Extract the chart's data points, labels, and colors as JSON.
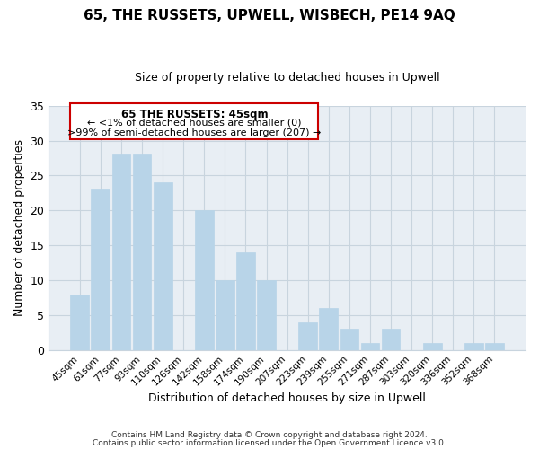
{
  "title": "65, THE RUSSETS, UPWELL, WISBECH, PE14 9AQ",
  "subtitle": "Size of property relative to detached houses in Upwell",
  "xlabel": "Distribution of detached houses by size in Upwell",
  "ylabel": "Number of detached properties",
  "bar_color": "#b8d4e8",
  "background_color": "#e8eef4",
  "grid_color": "#c8d4de",
  "categories": [
    "45sqm",
    "61sqm",
    "77sqm",
    "93sqm",
    "110sqm",
    "126sqm",
    "142sqm",
    "158sqm",
    "174sqm",
    "190sqm",
    "207sqm",
    "223sqm",
    "239sqm",
    "255sqm",
    "271sqm",
    "287sqm",
    "303sqm",
    "320sqm",
    "336sqm",
    "352sqm",
    "368sqm"
  ],
  "values": [
    8,
    23,
    28,
    28,
    24,
    0,
    20,
    10,
    14,
    10,
    0,
    4,
    6,
    3,
    1,
    3,
    0,
    1,
    0,
    1,
    1
  ],
  "ylim": [
    0,
    35
  ],
  "yticks": [
    0,
    5,
    10,
    15,
    20,
    25,
    30,
    35
  ],
  "annotation_title": "65 THE RUSSETS: 45sqm",
  "annotation_line1": "← <1% of detached houses are smaller (0)",
  "annotation_line2": ">99% of semi-detached houses are larger (207) →",
  "annotation_box_color": "#cc0000",
  "footer_line1": "Contains HM Land Registry data © Crown copyright and database right 2024.",
  "footer_line2": "Contains public sector information licensed under the Open Government Licence v3.0."
}
